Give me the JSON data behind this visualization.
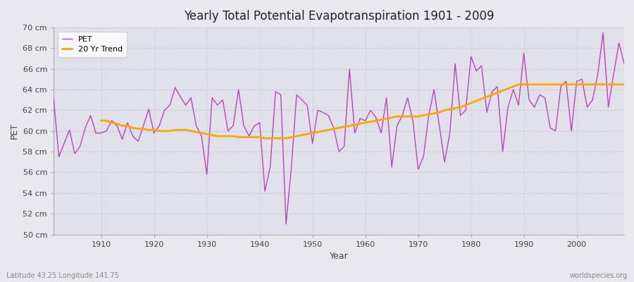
{
  "title": "Yearly Total Potential Evapotranspiration 1901 - 2009",
  "xlabel": "Year",
  "ylabel": "PET",
  "subtitle_left": "Latitude 43.25 Longitude 141.75",
  "subtitle_right": "worldspecies.org",
  "pet_color": "#BB44BB",
  "trend_color": "#FFA500",
  "background_color": "#E8E8EE",
  "plot_bg_color": "#E0E0EA",
  "grid_color": "#CCCCDD",
  "ylim": [
    50,
    70
  ],
  "xlim": [
    1901,
    2009
  ],
  "ytick_labels": [
    "50 cm",
    "52 cm",
    "54 cm",
    "56 cm",
    "58 cm",
    "60 cm",
    "62 cm",
    "64 cm",
    "66 cm",
    "68 cm",
    "70 cm"
  ],
  "ytick_values": [
    50,
    52,
    54,
    56,
    58,
    60,
    62,
    64,
    66,
    68,
    70
  ],
  "xtick_values": [
    1910,
    1920,
    1930,
    1940,
    1950,
    1960,
    1970,
    1980,
    1990,
    2000
  ],
  "years": [
    1901,
    1902,
    1903,
    1904,
    1905,
    1906,
    1907,
    1908,
    1909,
    1910,
    1911,
    1912,
    1913,
    1914,
    1915,
    1916,
    1917,
    1918,
    1919,
    1920,
    1921,
    1922,
    1923,
    1924,
    1925,
    1926,
    1927,
    1928,
    1929,
    1930,
    1931,
    1932,
    1933,
    1934,
    1935,
    1936,
    1937,
    1938,
    1939,
    1940,
    1941,
    1942,
    1943,
    1944,
    1945,
    1946,
    1947,
    1948,
    1949,
    1950,
    1951,
    1952,
    1953,
    1954,
    1955,
    1956,
    1957,
    1958,
    1959,
    1960,
    1961,
    1962,
    1963,
    1964,
    1965,
    1966,
    1967,
    1968,
    1969,
    1970,
    1971,
    1972,
    1973,
    1974,
    1975,
    1976,
    1977,
    1978,
    1979,
    1980,
    1981,
    1982,
    1983,
    1984,
    1985,
    1986,
    1987,
    1988,
    1989,
    1990,
    1991,
    1992,
    1993,
    1994,
    1995,
    1996,
    1997,
    1998,
    1999,
    2000,
    2001,
    2002,
    2003,
    2004,
    2005,
    2006,
    2007,
    2008,
    2009
  ],
  "pet_values": [
    63.2,
    57.5,
    58.8,
    60.1,
    57.8,
    58.5,
    60.3,
    61.5,
    59.8,
    59.8,
    60.0,
    61.0,
    60.5,
    59.2,
    60.8,
    59.5,
    59.0,
    60.5,
    62.1,
    59.8,
    60.5,
    62.0,
    62.5,
    64.2,
    63.3,
    62.5,
    63.2,
    60.5,
    59.5,
    55.8,
    63.2,
    62.5,
    63.0,
    60.0,
    60.5,
    64.0,
    60.5,
    59.5,
    60.5,
    60.8,
    54.2,
    56.5,
    63.8,
    63.5,
    51.0,
    56.5,
    63.5,
    63.0,
    62.5,
    58.8,
    62.0,
    61.8,
    61.5,
    60.3,
    58.0,
    58.5,
    66.0,
    59.8,
    61.2,
    61.0,
    62.0,
    61.3,
    59.8,
    63.2,
    56.5,
    60.5,
    61.5,
    63.2,
    61.0,
    56.3,
    57.5,
    61.5,
    64.0,
    60.5,
    57.0,
    59.8,
    66.5,
    61.5,
    62.0,
    67.2,
    65.8,
    66.3,
    61.8,
    63.8,
    64.3,
    58.0,
    62.3,
    64.0,
    62.5,
    67.5,
    63.0,
    62.3,
    63.5,
    63.2,
    60.3,
    60.0,
    64.3,
    64.8,
    60.0,
    64.8,
    65.0,
    62.3,
    63.0,
    65.5,
    69.5,
    62.3,
    65.5,
    68.5,
    66.5
  ],
  "trend_years": [
    1910,
    1911,
    1912,
    1913,
    1914,
    1915,
    1916,
    1917,
    1918,
    1919,
    1920,
    1921,
    1922,
    1923,
    1924,
    1925,
    1926,
    1927,
    1928,
    1929,
    1930,
    1931,
    1932,
    1933,
    1934,
    1935,
    1936,
    1937,
    1938,
    1939,
    1940,
    1941,
    1942,
    1943,
    1944,
    1945,
    1946,
    1947,
    1948,
    1949,
    1950,
    1951,
    1952,
    1953,
    1954,
    1955,
    1956,
    1957,
    1958,
    1959,
    1960,
    1961,
    1962,
    1963,
    1964,
    1965,
    1966,
    1967,
    1968,
    1969,
    1970,
    1971,
    1972,
    1973,
    1974,
    1975,
    1976,
    1977,
    1978,
    1979,
    1980,
    1981,
    1982,
    1983,
    1984,
    1985,
    1986,
    1987,
    1988,
    1989,
    1990,
    1991,
    1992,
    1993,
    1994,
    1995,
    1996,
    1997,
    1998,
    1999,
    2000,
    2001,
    2002,
    2003,
    2004,
    2005,
    2006,
    2007,
    2008,
    2009
  ],
  "trend_values": [
    61.0,
    61.0,
    60.8,
    60.7,
    60.5,
    60.5,
    60.3,
    60.2,
    60.2,
    60.1,
    60.1,
    60.0,
    60.0,
    60.0,
    60.1,
    60.1,
    60.1,
    60.0,
    59.9,
    59.8,
    59.7,
    59.6,
    59.5,
    59.5,
    59.5,
    59.5,
    59.4,
    59.4,
    59.4,
    59.4,
    59.4,
    59.3,
    59.3,
    59.3,
    59.3,
    59.3,
    59.4,
    59.5,
    59.6,
    59.7,
    59.8,
    59.9,
    60.0,
    60.1,
    60.2,
    60.3,
    60.4,
    60.5,
    60.6,
    60.7,
    60.8,
    60.9,
    61.0,
    61.1,
    61.2,
    61.3,
    61.4,
    61.4,
    61.4,
    61.4,
    61.4,
    61.5,
    61.6,
    61.7,
    61.8,
    62.0,
    62.1,
    62.2,
    62.3,
    62.5,
    62.7,
    62.9,
    63.1,
    63.3,
    63.5,
    63.7,
    63.9,
    64.1,
    64.3,
    64.5,
    64.5,
    64.5,
    64.5,
    64.5,
    64.5,
    64.5,
    64.5,
    64.5,
    64.5,
    64.5,
    64.5,
    64.5,
    64.5,
    64.5,
    64.5,
    64.5,
    64.5,
    64.5,
    64.5,
    64.5
  ]
}
